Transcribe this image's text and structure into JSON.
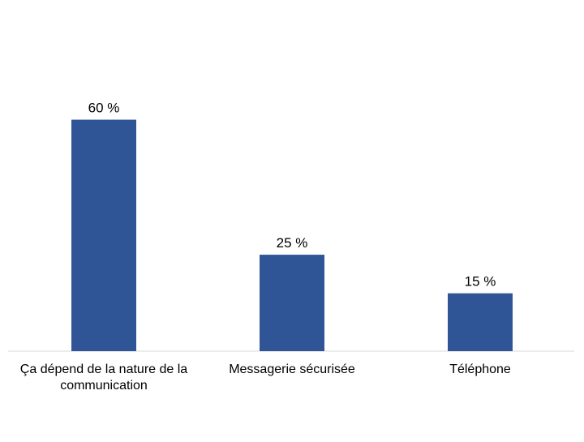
{
  "chart_data": {
    "type": "bar",
    "categories": [
      "Ça dépend de la nature de la communication",
      "Messagerie sécurisée",
      "Téléphone"
    ],
    "values": [
      60,
      25,
      15
    ],
    "value_labels": [
      "60 %",
      "25 %",
      "15 %"
    ],
    "ylim": [
      0,
      70
    ],
    "grid": false,
    "legend": "none",
    "bar_color": "#2F5597",
    "axis_color": "#D9D9D9"
  }
}
